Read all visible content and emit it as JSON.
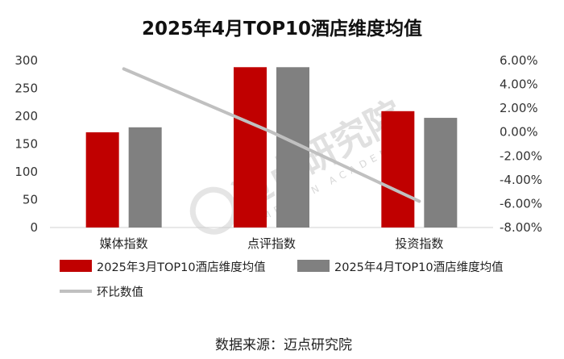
{
  "chart_data": {
    "type": "bar",
    "title": "2025年4月TOP10酒店维度均值",
    "categories": [
      "媒体指数",
      "点评指数",
      "投资指数"
    ],
    "series": [
      {
        "name": "2025年3月TOP10酒店维度均值",
        "type": "bar",
        "axis": "left",
        "color": "#c00000",
        "values": [
          171,
          288,
          209
        ]
      },
      {
        "name": "2025年4月TOP10酒店维度均值",
        "type": "bar",
        "axis": "left",
        "color": "#808080",
        "values": [
          180,
          288,
          197
        ]
      },
      {
        "name": "环比数值",
        "type": "line",
        "axis": "right",
        "color": "#c0c0c0",
        "values": [
          5.3,
          0.0,
          -5.8
        ]
      }
    ],
    "y_left": {
      "min": 0,
      "max": 300,
      "ticks": [
        "0",
        "50",
        "100",
        "150",
        "200",
        "250",
        "300"
      ]
    },
    "y_right": {
      "min": -8,
      "max": 6,
      "ticks": [
        "6.00%",
        "4.00%",
        "2.00%",
        "0.00%",
        "-2.00%",
        "-4.00%",
        "-6.00%",
        "-8.00%"
      ]
    },
    "grid": false,
    "legend_position": "bottom"
  },
  "watermark": {
    "main": "迈点研究院",
    "sub": "MEADIN ACADEMY"
  },
  "source_text": "数据来源：迈点研究院"
}
